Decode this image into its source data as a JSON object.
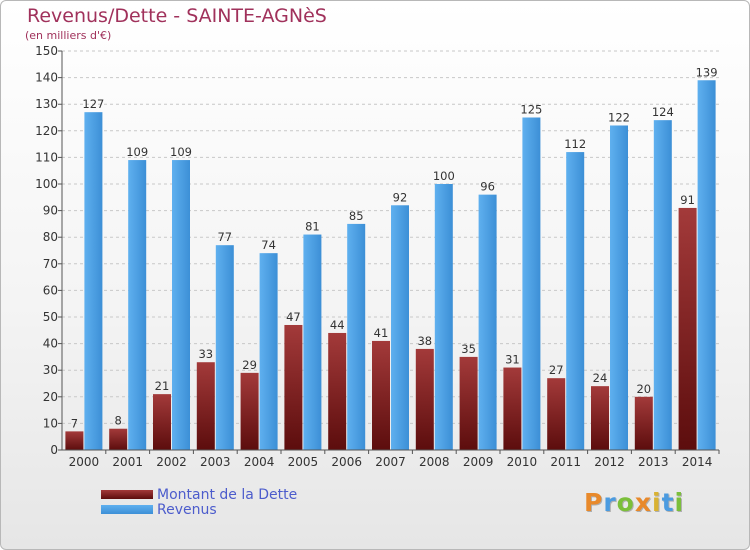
{
  "title": "Revenus/Dette - SAINTE-AGNèS",
  "subtitle": "(en milliers d'€)",
  "logo": "Proxiti",
  "colors": {
    "dette": "#7a1d1d",
    "revenus": "#4d9fe0",
    "title": "#a0315b",
    "legend_text": "#4c5ccc"
  },
  "chart_data": {
    "type": "bar",
    "categories": [
      "2000",
      "2001",
      "2002",
      "2003",
      "2004",
      "2005",
      "2006",
      "2007",
      "2008",
      "2009",
      "2010",
      "2011",
      "2012",
      "2013",
      "2014"
    ],
    "series": [
      {
        "name": "Montant de la Dette",
        "values": [
          7,
          8,
          21,
          33,
          29,
          47,
          44,
          41,
          38,
          35,
          31,
          27,
          24,
          20,
          91
        ]
      },
      {
        "name": "Revenus",
        "values": [
          127,
          109,
          109,
          77,
          74,
          81,
          85,
          92,
          100,
          96,
          125,
          112,
          122,
          124,
          139
        ]
      }
    ],
    "yticks": [
      0,
      10,
      20,
      30,
      40,
      50,
      60,
      70,
      80,
      90,
      100,
      110,
      120,
      130,
      140,
      150
    ],
    "ylim": [
      0,
      150
    ],
    "grid": "horizontal dashed",
    "legend_position": "bottom-left"
  }
}
